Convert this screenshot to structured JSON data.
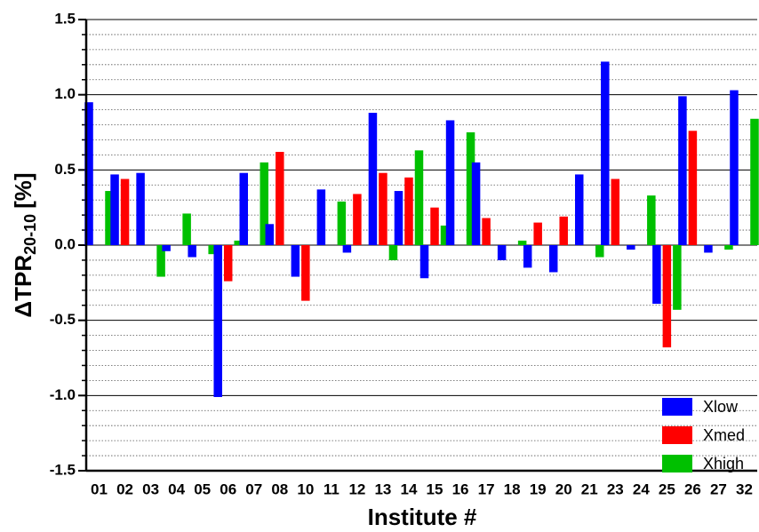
{
  "chart_data": {
    "type": "bar",
    "x_label": "Institute #",
    "y_label": {
      "main": "ΔTPR",
      "sub": "20-10",
      "unit": "[%]"
    },
    "categories": [
      "01",
      "02",
      "03",
      "04",
      "05",
      "06",
      "07",
      "08",
      "10",
      "11",
      "12",
      "13",
      "14",
      "15",
      "16",
      "17",
      "18",
      "19",
      "20",
      "21",
      "23",
      "24",
      "25",
      "26",
      "27",
      "32"
    ],
    "series": [
      {
        "name": "Xlow",
        "color": "#0000ff",
        "values": [
          0.95,
          0.47,
          0.48,
          -0.04,
          -0.08,
          -1.01,
          0.48,
          0.14,
          -0.21,
          0.37,
          -0.05,
          0.88,
          0.36,
          -0.22,
          0.83,
          0.55,
          -0.1,
          -0.15,
          -0.18,
          0.47,
          1.22,
          -0.03,
          -0.39,
          0.99,
          -0.05,
          1.03
        ]
      },
      {
        "name": "Xmed",
        "color": "#ff0000",
        "values": [
          null,
          0.44,
          null,
          null,
          null,
          -0.24,
          null,
          0.62,
          -0.37,
          null,
          0.34,
          0.48,
          0.45,
          0.25,
          null,
          0.18,
          null,
          0.15,
          0.19,
          null,
          0.44,
          null,
          -0.68,
          0.76,
          null,
          null
        ]
      },
      {
        "name": "Xhigh",
        "color": "#00c000",
        "values": [
          0.36,
          null,
          -0.21,
          0.21,
          -0.06,
          0.03,
          0.55,
          null,
          null,
          0.29,
          null,
          -0.1,
          0.63,
          0.13,
          0.75,
          null,
          0.03,
          null,
          null,
          -0.08,
          null,
          0.33,
          -0.43,
          null,
          -0.03,
          0.84
        ]
      }
    ],
    "ylim": [
      -1.5,
      1.5
    ],
    "yticks": [
      -1.5,
      {
        "value": -1.0,
        "label": "-1.0"
      },
      -0.5,
      {
        "value": 0.0,
        "label": "0.0"
      },
      0.5,
      {
        "value": 1.0,
        "label": "1.0"
      },
      1.5
    ],
    "grid": true,
    "legend": "lower right"
  }
}
